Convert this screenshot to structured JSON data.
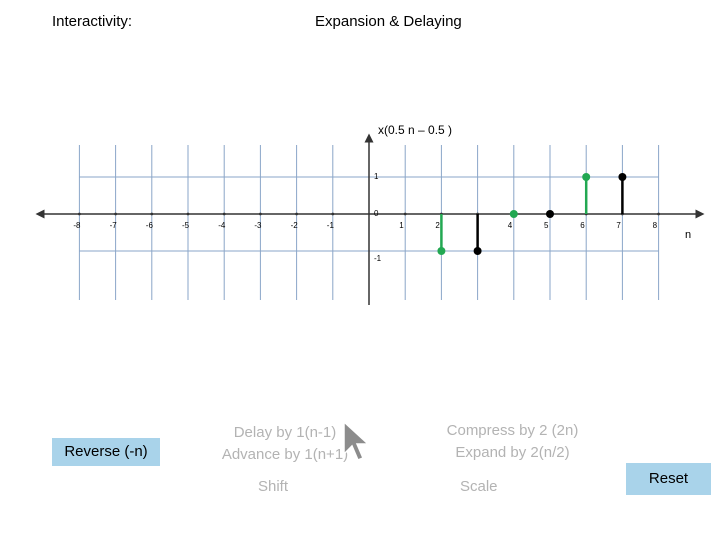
{
  "header": {
    "interactivity_label": "Interactivity:",
    "title": "Expansion & Delaying"
  },
  "chart_data": {
    "type": "stem",
    "function_label": "x(0.5 n – 0.5 )",
    "xlabel": "n",
    "x_ticks": [
      -8,
      -7,
      -6,
      -5,
      -4,
      -3,
      -2,
      -1,
      0,
      1,
      2,
      3,
      4,
      5,
      6,
      7,
      8
    ],
    "x_tick_labels": [
      "-8",
      "-7",
      "-6",
      "-5",
      "-4",
      "-3",
      "-2",
      "-1",
      "0",
      "1",
      "2",
      "",
      "4",
      "5",
      "6",
      "7",
      "8"
    ],
    "y_ticks": [
      1,
      -1
    ],
    "y_tick_labels": [
      "1",
      "-1"
    ],
    "xlim": [
      -9,
      9
    ],
    "ylim": [
      -1,
      1
    ],
    "grid": true,
    "series": [
      {
        "color": "#000000",
        "points": [
          {
            "x": 3,
            "y": -1
          },
          {
            "x": 5,
            "y": 0
          },
          {
            "x": 7,
            "y": 1
          }
        ]
      },
      {
        "color": "#22a852",
        "points": [
          {
            "x": 2,
            "y": -1
          },
          {
            "x": 4,
            "y": 0
          },
          {
            "x": 6,
            "y": 1
          }
        ]
      }
    ]
  },
  "controls": {
    "reverse_label": "Reverse (-n)",
    "delay_label": "Delay by 1(n-1)",
    "advance_label": "Advance by 1(n+1)",
    "shift_label": "Shift",
    "compress_label": "Compress by 2 (2n)",
    "expand_label": "Expand by 2(n/2)",
    "scale_label": "Scale",
    "reset_label": "Reset"
  },
  "colors": {
    "button_bg": "#a9d3ea",
    "grid": "#8aa6c8",
    "axis": "#333333",
    "faded_text": "#b3b3b3"
  }
}
